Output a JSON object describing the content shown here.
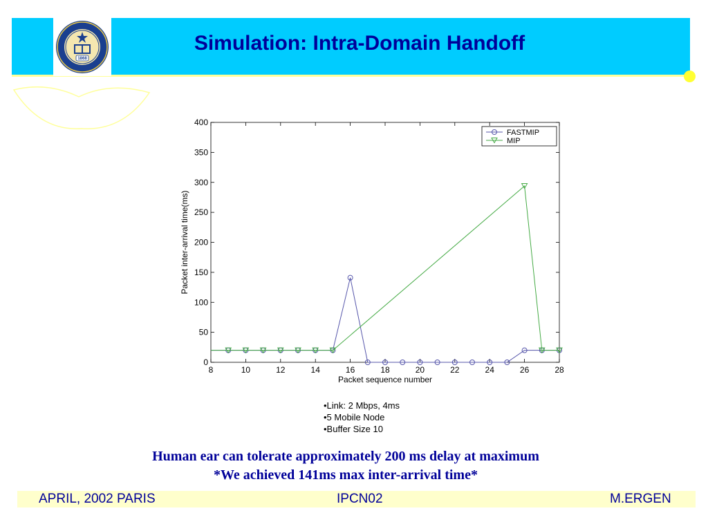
{
  "slide": {
    "title": "Simulation: Intra-Domain Handoff",
    "bullets": [
      "•Link: 2 Mbps, 4ms",
      "•5 Mobile Node",
      "•Buffer Size 10"
    ],
    "caption_line1": "Human ear can tolerate approximately 200 ms delay at maximum",
    "caption_line2": "*We achieved 141ms max inter-arrival time*",
    "footer": {
      "left": "APRIL, 2002 PARIS",
      "center": "IPCN02",
      "right": "M.ERGEN"
    },
    "seal_year": "1868"
  },
  "colors": {
    "title_band": "#00ccff",
    "title_text": "#000099",
    "footer_band": "#ffffcc",
    "fastmip": "#5555aa",
    "mip": "#44aa44"
  },
  "chart_data": {
    "type": "line",
    "xlabel": "Packet sequence number",
    "ylabel": "Packet inter-arrival time(ms)",
    "xlim": [
      8,
      28
    ],
    "ylim": [
      0,
      400
    ],
    "xticks": [
      8,
      10,
      12,
      14,
      16,
      18,
      20,
      22,
      24,
      26,
      28
    ],
    "yticks": [
      0,
      50,
      100,
      150,
      200,
      250,
      300,
      350,
      400
    ],
    "legend_position": "top-right",
    "series": [
      {
        "name": "FASTMIP",
        "marker": "circle",
        "x": [
          8,
          9,
          10,
          11,
          12,
          13,
          14,
          15,
          16,
          17,
          18,
          19,
          20,
          21,
          22,
          23,
          24,
          25,
          26,
          27,
          28
        ],
        "y": [
          20,
          20,
          20,
          20,
          20,
          20,
          20,
          20,
          141,
          0,
          0,
          0,
          0,
          0,
          0,
          0,
          0,
          0,
          20,
          20,
          20
        ],
        "markers_from_index": 1
      },
      {
        "name": "MIP",
        "marker": "triangle-down",
        "x": [
          8,
          9,
          10,
          11,
          12,
          13,
          14,
          15,
          26,
          27,
          28
        ],
        "y": [
          20,
          20,
          20,
          20,
          20,
          20,
          20,
          20,
          294,
          20,
          20
        ],
        "markers_from_index": 1
      }
    ]
  }
}
